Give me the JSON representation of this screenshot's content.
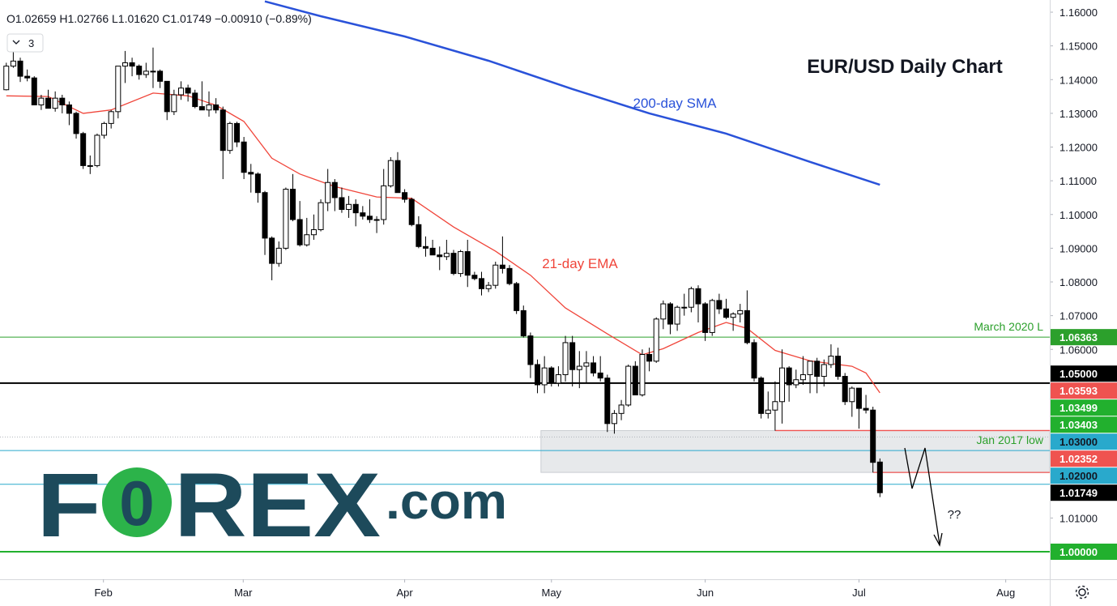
{
  "chart_data": {
    "type": "candlestick",
    "title": "EUR/USD Daily Chart",
    "header": "O1.02659 H1.02766 L1.01620 C1.01749 −0.00910 (−0.89%)",
    "indicator_count": 3,
    "logo": {
      "brand": "F",
      "mark": "0",
      "rest": "REX",
      "suffix": ".com"
    },
    "up_color": "#ffffff",
    "down_color": "#000000",
    "xlim": [
      -0.9,
      149.3
    ],
    "xticks": [
      {
        "value": 13.9,
        "label": "Feb"
      },
      {
        "value": 33.9,
        "label": "Mar"
      },
      {
        "value": 57,
        "label": "Apr"
      },
      {
        "value": 78,
        "label": "May"
      },
      {
        "value": 100,
        "label": "Jun"
      },
      {
        "value": 122,
        "label": "Jul"
      },
      {
        "value": 143,
        "label": "Aug"
      }
    ],
    "ylim": [
      0.99183,
      1.16361
    ],
    "yticks": [
      {
        "value": 1.16,
        "label": "1.16000"
      },
      {
        "value": 1.15,
        "label": "1.15000"
      },
      {
        "value": 1.14,
        "label": "1.14000"
      },
      {
        "value": 1.13,
        "label": "1.13000"
      },
      {
        "value": 1.12,
        "label": "1.12000"
      },
      {
        "value": 1.11,
        "label": "1.11000"
      },
      {
        "value": 1.1,
        "label": "1.10000"
      },
      {
        "value": 1.09,
        "label": "1.09000"
      },
      {
        "value": 1.08,
        "label": "1.08000"
      },
      {
        "value": 1.07,
        "label": "1.07000"
      },
      {
        "value": 1.06,
        "label": "1.06000"
      },
      {
        "value": 1.01,
        "label": "1.01000"
      }
    ],
    "ohlc": [
      [
        1.137,
        1.145,
        1.1368,
        1.144
      ],
      [
        1.144,
        1.1482,
        1.1435,
        1.1455
      ],
      [
        1.1455,
        1.1465,
        1.1393,
        1.141
      ],
      [
        1.141,
        1.143,
        1.1395,
        1.1405
      ],
      [
        1.1405,
        1.141,
        1.1325,
        1.1325
      ],
      [
        1.1325,
        1.1355,
        1.131,
        1.1345
      ],
      [
        1.1345,
        1.137,
        1.1315,
        1.1315
      ],
      [
        1.1315,
        1.1365,
        1.1305,
        1.1345
      ],
      [
        1.1345,
        1.1355,
        1.13,
        1.1325
      ],
      [
        1.1325,
        1.1335,
        1.1265,
        1.13
      ],
      [
        1.13,
        1.1305,
        1.1225,
        1.124
      ],
      [
        1.124,
        1.1245,
        1.1135,
        1.1145
      ],
      [
        1.1145,
        1.1175,
        1.112,
        1.1145
      ],
      [
        1.1145,
        1.124,
        1.114,
        1.1235
      ],
      [
        1.1235,
        1.1275,
        1.1225,
        1.127
      ],
      [
        1.127,
        1.131,
        1.1255,
        1.1305
      ],
      [
        1.1305,
        1.144,
        1.1285,
        1.144
      ],
      [
        1.144,
        1.1485,
        1.139,
        1.145
      ],
      [
        1.145,
        1.1465,
        1.141,
        1.144
      ],
      [
        1.144,
        1.1445,
        1.14,
        1.1415
      ],
      [
        1.1415,
        1.145,
        1.1405,
        1.1425
      ],
      [
        1.1425,
        1.1495,
        1.1375,
        1.1425
      ],
      [
        1.1425,
        1.143,
        1.1375,
        1.1395
      ],
      [
        1.1395,
        1.1395,
        1.128,
        1.1305
      ],
      [
        1.1305,
        1.137,
        1.1295,
        1.1355
      ],
      [
        1.1355,
        1.1395,
        1.134,
        1.1375
      ],
      [
        1.1375,
        1.1385,
        1.1335,
        1.136
      ],
      [
        1.136,
        1.137,
        1.1315,
        1.132
      ],
      [
        1.132,
        1.1395,
        1.131,
        1.131
      ],
      [
        1.131,
        1.1365,
        1.129,
        1.1325
      ],
      [
        1.1325,
        1.1345,
        1.13,
        1.131
      ],
      [
        1.131,
        1.132,
        1.1105,
        1.119
      ],
      [
        1.119,
        1.1275,
        1.118,
        1.127
      ],
      [
        1.127,
        1.1275,
        1.12,
        1.1215
      ],
      [
        1.1215,
        1.123,
        1.1105,
        1.1125
      ],
      [
        1.1125,
        1.115,
        1.1065,
        1.112
      ],
      [
        1.112,
        1.1125,
        1.1035,
        1.1065
      ],
      [
        1.1065,
        1.107,
        1.088,
        1.093
      ],
      [
        1.093,
        1.0935,
        1.0805,
        1.0855
      ],
      [
        1.0855,
        1.092,
        1.0845,
        1.09
      ],
      [
        1.09,
        1.108,
        1.0895,
        1.1075
      ],
      [
        1.1075,
        1.112,
        1.098,
        1.0985
      ],
      [
        1.0985,
        1.104,
        1.0905,
        1.091
      ],
      [
        1.091,
        1.099,
        1.0905,
        1.094
      ],
      [
        1.094,
        1.1,
        1.0925,
        1.0955
      ],
      [
        1.0955,
        1.1045,
        1.095,
        1.1035
      ],
      [
        1.1035,
        1.1135,
        1.101,
        1.1095
      ],
      [
        1.1095,
        1.1105,
        1.101,
        1.105
      ],
      [
        1.105,
        1.108,
        1.1005,
        1.1015
      ],
      [
        1.1015,
        1.1055,
        1.099,
        1.103
      ],
      [
        1.103,
        1.1045,
        1.0965,
        1.1005
      ],
      [
        1.1005,
        1.1025,
        1.0985,
        1.0995
      ],
      [
        1.0995,
        1.1045,
        1.0975,
        1.0985
      ],
      [
        1.0985,
        1.0995,
        1.0945,
        1.0985
      ],
      [
        1.0985,
        1.1135,
        1.097,
        1.1085
      ],
      [
        1.1085,
        1.117,
        1.108,
        1.116
      ],
      [
        1.116,
        1.1185,
        1.1065,
        1.1065
      ],
      [
        1.1065,
        1.1075,
        1.1035,
        1.1045
      ],
      [
        1.1045,
        1.105,
        1.0965,
        1.097
      ],
      [
        1.097,
        1.0995,
        1.09,
        1.0905
      ],
      [
        1.0905,
        1.0935,
        1.0875,
        1.09
      ],
      [
        1.09,
        1.0925,
        1.088,
        1.088
      ],
      [
        1.088,
        1.0905,
        1.0835,
        1.0875
      ],
      [
        1.0875,
        1.0925,
        1.0865,
        1.0885
      ],
      [
        1.0885,
        1.0895,
        1.082,
        1.0825
      ],
      [
        1.0825,
        1.0895,
        1.0815,
        1.089
      ],
      [
        1.089,
        1.0925,
        1.0785,
        1.082
      ],
      [
        1.082,
        1.083,
        1.0805,
        1.081
      ],
      [
        1.081,
        1.083,
        1.076,
        1.078
      ],
      [
        1.078,
        1.08,
        1.077,
        1.079
      ],
      [
        1.079,
        1.086,
        1.078,
        1.085
      ],
      [
        1.085,
        1.0935,
        1.0825,
        1.084
      ],
      [
        1.084,
        1.085,
        1.079,
        1.0795
      ],
      [
        1.0795,
        1.08,
        1.0705,
        1.0715
      ],
      [
        1.0715,
        1.073,
        1.0635,
        1.064
      ],
      [
        1.064,
        1.065,
        1.0515,
        1.0555
      ],
      [
        1.0555,
        1.057,
        1.047,
        1.0495
      ],
      [
        1.0495,
        1.058,
        1.047,
        1.0545
      ],
      [
        1.0545,
        1.055,
        1.049,
        1.05
      ],
      [
        1.05,
        1.055,
        1.049,
        1.0525
      ],
      [
        1.0525,
        1.064,
        1.0505,
        1.062
      ],
      [
        1.062,
        1.064,
        1.049,
        1.054
      ],
      [
        1.054,
        1.0595,
        1.0485,
        1.055
      ],
      [
        1.055,
        1.0595,
        1.05,
        1.056
      ],
      [
        1.056,
        1.058,
        1.052,
        1.053
      ],
      [
        1.053,
        1.058,
        1.0505,
        1.0515
      ],
      [
        1.0515,
        1.0525,
        1.0355,
        1.038
      ],
      [
        1.038,
        1.042,
        1.035,
        1.041
      ],
      [
        1.041,
        1.045,
        1.039,
        1.0435
      ],
      [
        1.0435,
        1.0555,
        1.043,
        1.055
      ],
      [
        1.055,
        1.0565,
        1.0465,
        1.0465
      ],
      [
        1.0465,
        1.06,
        1.046,
        1.0585
      ],
      [
        1.0585,
        1.0605,
        1.0535,
        1.0565
      ],
      [
        1.0565,
        1.0695,
        1.056,
        1.069
      ],
      [
        1.069,
        1.0745,
        1.066,
        1.0735
      ],
      [
        1.0735,
        1.074,
        1.0645,
        1.0675
      ],
      [
        1.0675,
        1.073,
        1.0655,
        1.0725
      ],
      [
        1.0725,
        1.0765,
        1.07,
        1.0725
      ],
      [
        1.0725,
        1.0786,
        1.071,
        1.078
      ],
      [
        1.078,
        1.079,
        1.068,
        1.0735
      ],
      [
        1.0735,
        1.074,
        1.0625,
        1.065
      ],
      [
        1.065,
        1.075,
        1.064,
        1.0745
      ],
      [
        1.0745,
        1.0765,
        1.0705,
        1.072
      ],
      [
        1.072,
        1.075,
        1.069,
        1.0695
      ],
      [
        1.0695,
        1.071,
        1.0655,
        1.0705
      ],
      [
        1.0705,
        1.0735,
        1.068,
        1.0715
      ],
      [
        1.0715,
        1.0775,
        1.0615,
        1.062
      ],
      [
        1.062,
        1.063,
        1.0505,
        1.0515
      ],
      [
        1.0515,
        1.052,
        1.0395,
        1.041
      ],
      [
        1.041,
        1.0475,
        1.0395,
        1.042
      ],
      [
        1.042,
        1.0505,
        1.0359,
        1.0445
      ],
      [
        1.0445,
        1.06,
        1.038,
        1.0545
      ],
      [
        1.0545,
        1.055,
        1.0445,
        1.0495
      ],
      [
        1.0495,
        1.054,
        1.0485,
        1.051
      ],
      [
        1.051,
        1.058,
        1.0495,
        1.0525
      ],
      [
        1.0525,
        1.056,
        1.047,
        1.0565
      ],
      [
        1.0565,
        1.0575,
        1.047,
        1.052
      ],
      [
        1.052,
        1.057,
        1.049,
        1.0555
      ],
      [
        1.0555,
        1.0615,
        1.0545,
        1.058
      ],
      [
        1.058,
        1.0605,
        1.051,
        1.052
      ],
      [
        1.052,
        1.053,
        1.0435,
        1.0445
      ],
      [
        1.0445,
        1.049,
        1.04,
        1.0485
      ],
      [
        1.0485,
        1.0485,
        1.0365,
        1.0425
      ],
      [
        1.0425,
        1.0465,
        1.041,
        1.042
      ],
      [
        1.042,
        1.043,
        1.0235,
        1.0265
      ],
      [
        1.02659,
        1.02766,
        1.0162,
        1.01749
      ]
    ],
    "lines": [
      {
        "name": "21-day EMA",
        "color": "#f0453a",
        "width": 1.3,
        "x": [
          0,
          6,
          11,
          15,
          21,
          26,
          30,
          34,
          38,
          42,
          47,
          53,
          58,
          64,
          70,
          75,
          80,
          86,
          91,
          94,
          99,
          103,
          106,
          110,
          115,
          121,
          123,
          125
        ],
        "values": [
          1.1352,
          1.135,
          1.13,
          1.131,
          1.136,
          1.1352,
          1.1324,
          1.1276,
          1.1167,
          1.112,
          1.1083,
          1.1052,
          1.1048,
          1.0963,
          1.0891,
          1.082,
          1.0723,
          1.0646,
          1.0584,
          1.0602,
          1.065,
          1.068,
          1.0662,
          1.0597,
          1.0566,
          1.055,
          1.053,
          1.0471
        ]
      },
      {
        "name": "200-day SMA",
        "color": "#2a52d9",
        "width": 2.5,
        "x": [
          37,
          45,
          57,
          69,
          81,
          92,
          103,
          115,
          125
        ],
        "values": [
          1.1632,
          1.1588,
          1.1528,
          1.1456,
          1.1372,
          1.13,
          1.124,
          1.1156,
          1.1088
        ]
      }
    ],
    "levels": [
      {
        "value": 1.06363,
        "label": "1.06363",
        "color": "#2ca02c",
        "line": "solid",
        "width": 1,
        "text": "March 2020 L"
      },
      {
        "value": 1.05,
        "label": "1.05000",
        "color": "#000000",
        "line": "solid",
        "width": 2
      },
      {
        "value": 1.03593,
        "label": "1.03593",
        "color": "#ef5350",
        "line": "solid",
        "width": 1.3,
        "from": 110
      },
      {
        "value": 1.03499,
        "label": "1.03499",
        "color": "#22b02e",
        "line": "none"
      },
      {
        "value": 1.03403,
        "label": "1.03403",
        "color": "#22b02e",
        "line": "dotted",
        "width": 1
      },
      {
        "value": 1.03,
        "label": "1.03000",
        "color": "#29a9cc",
        "line": "solid",
        "width": 1,
        "text": "Jan 2017 low"
      },
      {
        "value": 1.02352,
        "label": "1.02352",
        "color": "#ef5350",
        "line": "solid",
        "width": 1.3,
        "from": 124
      },
      {
        "value": 1.02,
        "label": "1.02000",
        "color": "#29a9cc",
        "line": "solid",
        "width": 1
      },
      {
        "value": 1.01749,
        "label": "1.01749",
        "color": "#000000",
        "line": "none"
      },
      {
        "value": 1.0,
        "label": "1.00000",
        "color": "#22b02e",
        "line": "solid",
        "width": 2
      }
    ],
    "zone": {
      "from": 76.5,
      "top": 1.03593,
      "bottom": 1.02352,
      "color": "#dfe1e4"
    },
    "annotation": "??"
  }
}
